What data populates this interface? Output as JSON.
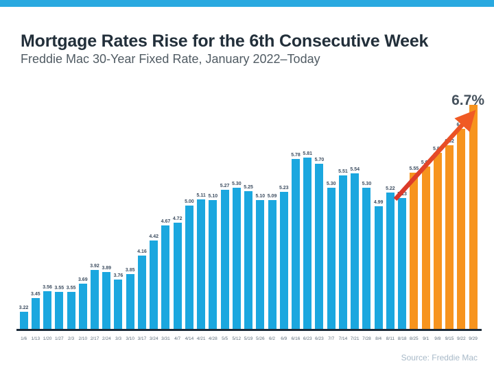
{
  "page": {
    "top_stripe_color": "#29A9E0"
  },
  "chart_data": {
    "type": "bar",
    "title": "Mortgage Rates Rise for the 6th Consecutive Week",
    "subtitle": "Freddie Mac 30-Year Fixed Rate, January 2022–Today",
    "source": "Source: Freddie Mac",
    "annotation": "6.7%",
    "xlabel": "",
    "ylabel": "",
    "ylim": [
      2.93,
      6.73
    ],
    "grid": false,
    "legend": "none",
    "categories": [
      "1/6",
      "1/13",
      "1/20",
      "1/27",
      "2/3",
      "2/10",
      "2/17",
      "2/24",
      "3/3",
      "3/10",
      "3/17",
      "3/24",
      "3/31",
      "4/7",
      "4/14",
      "4/21",
      "4/28",
      "5/5",
      "5/12",
      "5/19",
      "5/26",
      "6/2",
      "6/9",
      "6/16",
      "6/23",
      "6/23",
      "7/7",
      "7/14",
      "7/21",
      "7/28",
      "8/4",
      "8/11",
      "8/18",
      "8/25",
      "9/1",
      "9/8",
      "9/15",
      "9/22",
      "9/29"
    ],
    "values": [
      3.22,
      3.45,
      3.56,
      3.55,
      3.55,
      3.69,
      3.92,
      3.89,
      3.76,
      3.85,
      4.16,
      4.42,
      4.67,
      4.72,
      5.0,
      5.11,
      5.1,
      5.27,
      5.3,
      5.25,
      5.1,
      5.09,
      5.23,
      5.78,
      5.81,
      5.7,
      5.3,
      5.51,
      5.54,
      5.3,
      4.99,
      5.22,
      5.13,
      5.55,
      5.66,
      5.89,
      6.02,
      6.29,
      6.7
    ],
    "value_labels": [
      "3.22",
      "3.45",
      "3.56",
      "3.55",
      "3.55",
      "3.69",
      "3.92",
      "3.89",
      "3.76",
      "3.85",
      "4.16",
      "4.42",
      "4.67",
      "4.72",
      "5.00",
      "5.11",
      "5.10",
      "5.27",
      "5.30",
      "5.25",
      "5.10",
      "5.09",
      "5.23",
      "5.78",
      "5.81",
      "5.70",
      "5.30",
      "5.51",
      "5.54",
      "5.30",
      "4.99",
      "5.22",
      "5.13",
      "5.55",
      "5.66",
      "5.89",
      "6.02",
      "6.29",
      ""
    ],
    "highlight_start_index": 33,
    "colors": {
      "bar_blue": "#1BA7DF",
      "bar_orange": "#F7941E",
      "baseline": "#1B2A38",
      "arrow_start": "#D7352B",
      "arrow_end": "#F05A24",
      "value_label": "#3E4E61",
      "tick_label": "#5F6E7B",
      "annotation": "#46525D",
      "source": "#A8B9C8"
    },
    "arrow": {
      "from": [
        576,
        291
      ],
      "to": [
        683,
        172
      ]
    }
  }
}
